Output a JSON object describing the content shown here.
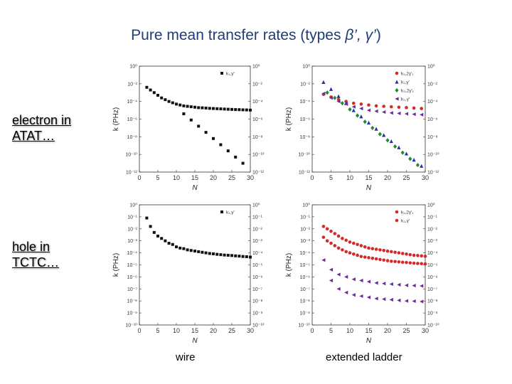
{
  "slide": {
    "title_prefix": "Pure mean transfer rates (types ",
    "title_beta": "β’, γ’",
    "title_suffix": ")",
    "row_labels": [
      {
        "line1": "electron in",
        "line2": "ATAT…"
      },
      {
        "line1": "hole in",
        "line2": "TCTC…"
      }
    ],
    "column_labels": [
      "wire",
      "extended ladder"
    ]
  },
  "chart_data": [
    {
      "id": "electron-wire",
      "type": "scatter",
      "xlabel": "N",
      "ylabel": "k (PHz)",
      "xlim": [
        0,
        30
      ],
      "xticks": [
        0,
        5,
        10,
        15,
        20,
        25,
        30
      ],
      "ylim_log10": [
        -12,
        0
      ],
      "left_ticks": [
        "10⁰",
        "10⁻²",
        "10⁻⁴",
        "10⁻⁶",
        "10⁻⁸",
        "10⁻¹⁰",
        "10⁻¹²"
      ],
      "right_ticks": [
        "10⁰",
        "10⁻²",
        "10⁻⁴",
        "10⁻⁶",
        "10⁻⁸",
        "10⁻¹⁰",
        "10⁻¹²"
      ],
      "series": [
        {
          "name": "k₁,γ′",
          "marker": "square",
          "color": "#111111",
          "x": [
            2,
            3,
            4,
            5,
            6,
            7,
            8,
            9,
            10,
            11,
            12,
            13,
            14,
            15,
            16,
            17,
            18,
            19,
            20,
            21,
            22,
            23,
            24,
            25,
            26,
            27,
            28,
            29,
            30
          ],
          "y": [
            -2.4,
            -2.7,
            -3.0,
            -3.3,
            -3.6,
            -3.8,
            -4.0,
            -4.15,
            -4.3,
            -4.4,
            -4.5,
            -4.55,
            -4.6,
            -4.65,
            -4.7,
            -4.72,
            -4.75,
            -4.78,
            -4.8,
            -4.82,
            -4.84,
            -4.86,
            -4.88,
            -4.9,
            -4.92,
            -4.93,
            -4.95,
            -4.96,
            -4.98
          ]
        },
        {
          "name": "k₁,γ′ (long-range)",
          "marker": "square",
          "color": "#111111",
          "x": [
            12,
            14,
            16,
            18,
            20,
            22,
            24,
            26,
            28
          ],
          "y": [
            -5.4,
            -6.1,
            -6.8,
            -7.5,
            -8.2,
            -8.9,
            -9.6,
            -10.3,
            -11.0
          ]
        }
      ],
      "legend": [
        "k₁,γ′"
      ]
    },
    {
      "id": "electron-ladder",
      "type": "scatter",
      "xlabel": "N",
      "ylabel": "k (PHz)",
      "xlim": [
        0,
        30
      ],
      "xticks": [
        0,
        5,
        10,
        15,
        20,
        25,
        30
      ],
      "ylim_log10": [
        -12,
        0
      ],
      "left_ticks": [
        "10⁰",
        "10⁻²",
        "10⁻⁴",
        "10⁻⁶",
        "10⁻⁸",
        "10⁻¹⁰",
        "10⁻¹²"
      ],
      "right_ticks": [
        "10⁰",
        "10⁻²",
        "10⁻⁴",
        "10⁻⁶",
        "10⁻⁸",
        "10⁻¹⁰",
        "10⁻¹²"
      ],
      "series": [
        {
          "name": "k₁,2γ′₁",
          "marker": "circle",
          "color": "#d42a2a",
          "x": [
            3,
            5,
            7,
            9,
            11,
            13,
            15,
            17,
            19,
            21,
            23,
            25,
            27,
            29
          ],
          "y": [
            -3.2,
            -3.5,
            -3.8,
            -4.0,
            -4.2,
            -4.3,
            -4.4,
            -4.5,
            -4.55,
            -4.6,
            -4.65,
            -4.7,
            -4.75,
            -4.8
          ]
        },
        {
          "name": "k₁,γ′",
          "marker": "triangle-up",
          "color": "#2431a8",
          "x": [
            3,
            5,
            7,
            9,
            11,
            13,
            15,
            17,
            19,
            21,
            23,
            25,
            27,
            29
          ],
          "y": [
            -1.8,
            -2.6,
            -3.4,
            -4.2,
            -5.0,
            -5.7,
            -6.4,
            -7.1,
            -7.8,
            -8.5,
            -9.2,
            -9.9,
            -10.6,
            -11.3
          ]
        },
        {
          "name": "k₂,2γ′₁",
          "marker": "diamond",
          "color": "#1e8c2e",
          "x": [
            4,
            6,
            8,
            10,
            12,
            14,
            16,
            18,
            20,
            22,
            24,
            26,
            28
          ],
          "y": [
            -3.0,
            -3.6,
            -4.2,
            -4.9,
            -5.6,
            -6.3,
            -7.0,
            -7.7,
            -8.4,
            -9.1,
            -9.8,
            -10.5,
            -11.2
          ]
        },
        {
          "name": "k₂,γ′",
          "marker": "triangle-left",
          "color": "#6a2b9e",
          "x": [
            3,
            5,
            7,
            9,
            11,
            13,
            15,
            17,
            19,
            21,
            23,
            25,
            27,
            29
          ],
          "y": [
            -3.1,
            -3.6,
            -4.0,
            -4.3,
            -4.6,
            -4.8,
            -5.0,
            -5.1,
            -5.2,
            -5.3,
            -5.35,
            -5.4,
            -5.45,
            -5.5
          ]
        }
      ],
      "legend": [
        "k₁,2γ′₁",
        "k₁,γ′",
        "k₂,2γ′₁",
        "k₂,γ′"
      ]
    },
    {
      "id": "hole-wire",
      "type": "scatter",
      "xlabel": "N",
      "ylabel": "k (PHz)",
      "xlim": [
        0,
        30
      ],
      "xticks": [
        0,
        5,
        10,
        15,
        20,
        25,
        30
      ],
      "ylim_log10": [
        -10,
        0
      ],
      "left_ticks": [
        "10⁰",
        "10⁻¹",
        "10⁻²",
        "10⁻³",
        "10⁻⁴",
        "10⁻⁵",
        "10⁻⁶",
        "10⁻⁷",
        "10⁻⁸",
        "10⁻⁹",
        "10⁻¹⁰"
      ],
      "right_ticks": [
        "10⁰",
        "10⁻¹",
        "10⁻²",
        "10⁻³",
        "10⁻⁴",
        "10⁻⁵",
        "10⁻⁶",
        "10⁻⁷",
        "10⁻⁸",
        "10⁻⁹",
        "10⁻¹⁰"
      ],
      "series": [
        {
          "name": "k₁,γ′",
          "marker": "square",
          "color": "#111111",
          "x": [
            2,
            3,
            4,
            5,
            6,
            7,
            8,
            9,
            10,
            11,
            12,
            13,
            14,
            15,
            16,
            17,
            18,
            19,
            20,
            21,
            22,
            23,
            24,
            25,
            26,
            27,
            28,
            29,
            30
          ],
          "y": [
            -1.1,
            -1.8,
            -2.3,
            -2.6,
            -2.8,
            -3.0,
            -3.2,
            -3.3,
            -3.5,
            -3.6,
            -3.65,
            -3.75,
            -3.8,
            -3.85,
            -3.9,
            -3.95,
            -4.0,
            -4.05,
            -4.08,
            -4.12,
            -4.15,
            -4.18,
            -4.2,
            -4.22,
            -4.25,
            -4.27,
            -4.3,
            -4.32,
            -4.35
          ]
        }
      ],
      "legend": [
        "k₁,γ′"
      ]
    },
    {
      "id": "hole-ladder",
      "type": "scatter",
      "xlabel": "N",
      "ylabel": "k (PHz)",
      "xlim": [
        0,
        30
      ],
      "xticks": [
        0,
        5,
        10,
        15,
        20,
        25,
        30
      ],
      "ylim_log10": [
        -10,
        0
      ],
      "left_ticks": [
        "10⁰",
        "10⁻¹",
        "10⁻²",
        "10⁻³",
        "10⁻⁴",
        "10⁻⁵",
        "10⁻⁶",
        "10⁻⁷",
        "10⁻⁸",
        "10⁻⁹",
        "10⁻¹⁰"
      ],
      "right_ticks": [
        "10⁰",
        "10⁻¹",
        "10⁻²",
        "10⁻³",
        "10⁻⁴",
        "10⁻⁵",
        "10⁻⁶",
        "10⁻⁷",
        "10⁻⁸",
        "10⁻⁹",
        "10⁻¹⁰"
      ],
      "series": [
        {
          "name": "k₁,2γ′₁ (upper)",
          "marker": "circle",
          "color": "#d42a2a",
          "x": [
            3,
            4,
            5,
            6,
            7,
            8,
            9,
            10,
            11,
            12,
            13,
            14,
            15,
            16,
            17,
            18,
            19,
            20,
            21,
            22,
            23,
            24,
            25,
            26,
            27,
            28,
            29,
            30
          ],
          "y": [
            -1.8,
            -2.0,
            -2.2,
            -2.4,
            -2.6,
            -2.8,
            -2.95,
            -3.1,
            -3.2,
            -3.3,
            -3.4,
            -3.5,
            -3.6,
            -3.65,
            -3.7,
            -3.75,
            -3.8,
            -3.85,
            -3.9,
            -3.95,
            -4.0,
            -4.05,
            -4.1,
            -4.15,
            -4.2,
            -4.22,
            -4.25,
            -4.28
          ]
        },
        {
          "name": "k₁,2γ′₁ (lower)",
          "marker": "circle",
          "color": "#d42a2a",
          "x": [
            3,
            4,
            5,
            6,
            7,
            8,
            9,
            10,
            11,
            12,
            13,
            14,
            15,
            16,
            17,
            18,
            19,
            20,
            21,
            22,
            23,
            24,
            25,
            26,
            27,
            28,
            29,
            30
          ],
          "y": [
            -2.7,
            -3.0,
            -3.2,
            -3.4,
            -3.6,
            -3.75,
            -3.9,
            -4.0,
            -4.1,
            -4.2,
            -4.3,
            -4.35,
            -4.4,
            -4.45,
            -4.5,
            -4.55,
            -4.6,
            -4.65,
            -4.7,
            -4.72,
            -4.75,
            -4.78,
            -4.8,
            -4.83,
            -4.86,
            -4.88,
            -4.9,
            -4.92
          ]
        },
        {
          "name": "k₂,γ′ (upper)",
          "marker": "triangle-left",
          "color": "#6a2b9e",
          "x": [
            3,
            5,
            7,
            9,
            11,
            13,
            15,
            17,
            19,
            21,
            23,
            25,
            27,
            29
          ],
          "y": [
            -4.6,
            -5.4,
            -5.8,
            -6.0,
            -6.2,
            -6.3,
            -6.4,
            -6.5,
            -6.55,
            -6.6,
            -6.65,
            -6.7,
            -6.72,
            -6.75
          ]
        },
        {
          "name": "k₂,γ′ (lower)",
          "marker": "triangle-left",
          "color": "#6a2b9e",
          "x": [
            5,
            7,
            9,
            11,
            13,
            15,
            17,
            19,
            21,
            23,
            25,
            27,
            29
          ],
          "y": [
            -6.3,
            -7.0,
            -7.3,
            -7.5,
            -7.6,
            -7.7,
            -7.8,
            -7.85,
            -7.9,
            -7.95,
            -8.0,
            -8.02,
            -8.05
          ]
        }
      ],
      "legend": [
        "k₁,2γ′₁",
        "k₂,γ′"
      ]
    }
  ]
}
